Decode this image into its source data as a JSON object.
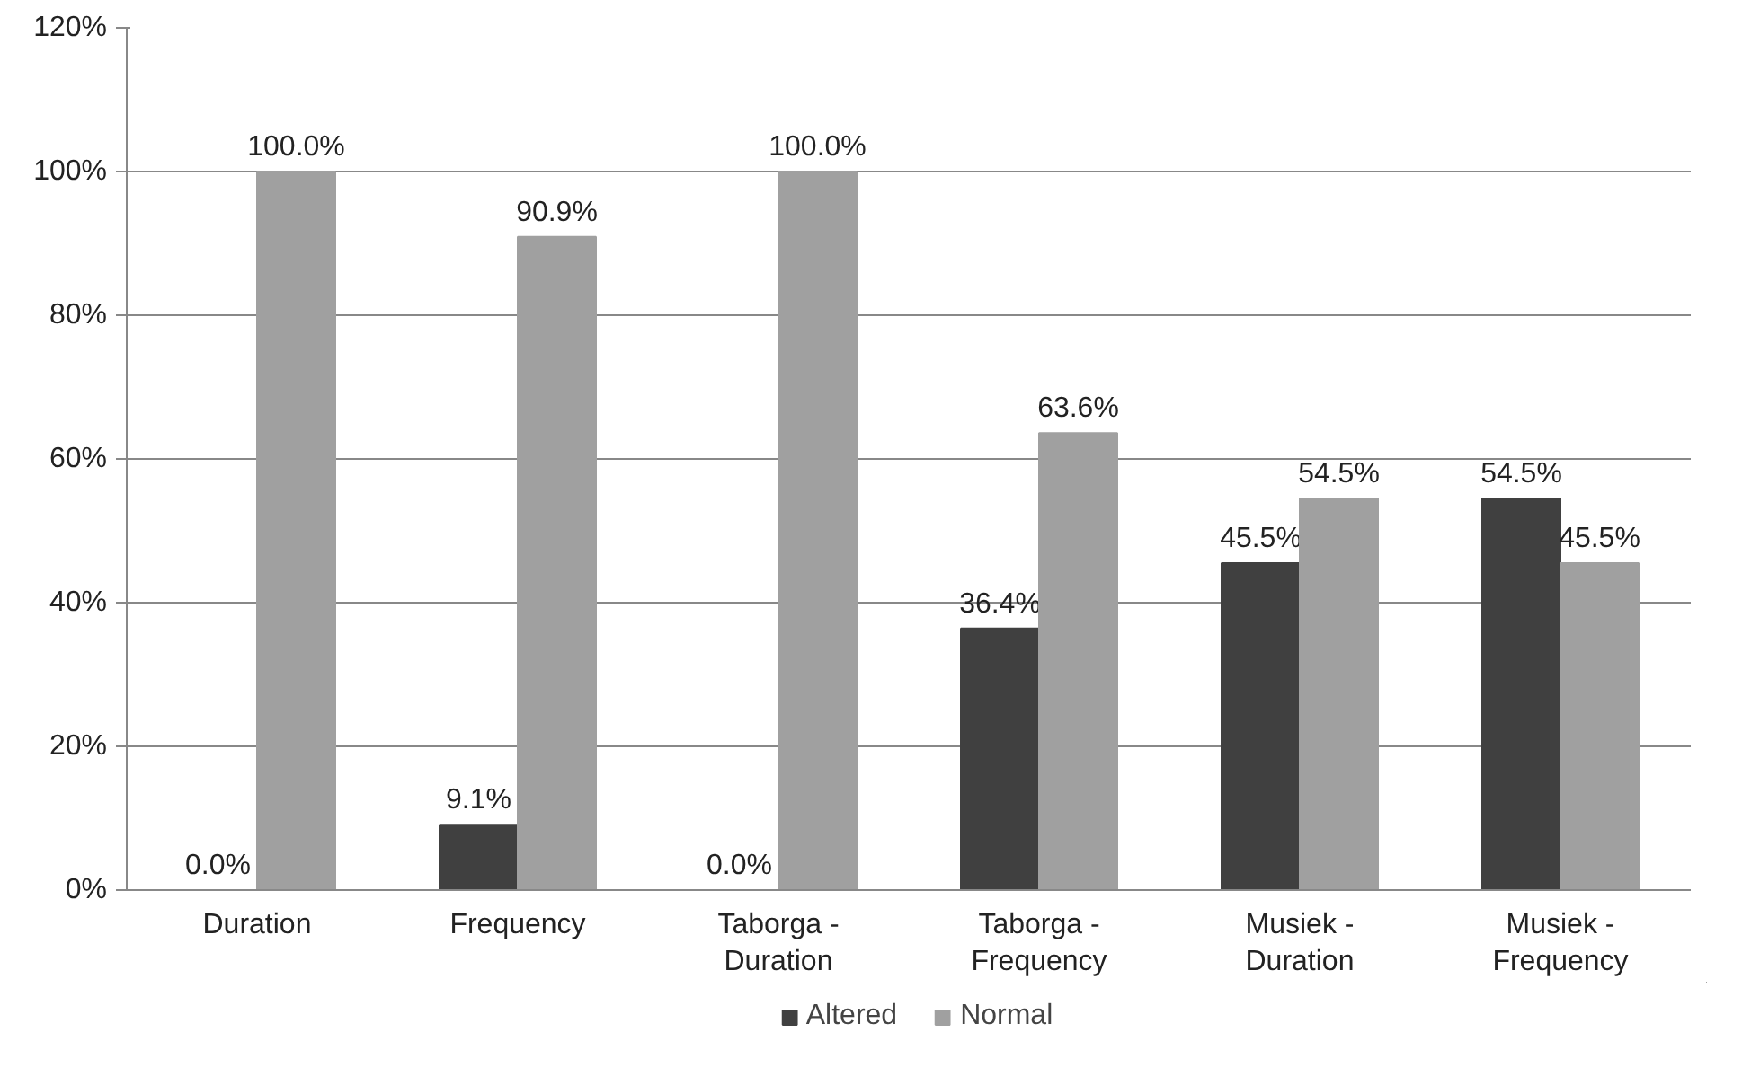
{
  "chart_data": {
    "type": "bar",
    "categories": [
      "Duration",
      "Frequency",
      "Taborga - Duration",
      "Taborga - Frequency",
      "Musiek - Duration",
      "Musiek - Frequency"
    ],
    "series": [
      {
        "name": "Altered",
        "color": "#404040",
        "values": [
          0.0,
          9.1,
          0.0,
          36.4,
          45.5,
          54.5
        ],
        "value_labels": [
          "0.0%",
          "9.1%",
          "0.0%",
          "36.4%",
          "45.5%",
          "54.5%"
        ]
      },
      {
        "name": "Normal",
        "color": "#a0a0a0",
        "values": [
          100.0,
          90.9,
          100.0,
          63.6,
          54.5,
          45.5
        ],
        "value_labels": [
          "100.0%",
          "90.9%",
          "100.0%",
          "63.6%",
          "54.5%",
          "45.5%"
        ]
      }
    ],
    "ylim": [
      0,
      120
    ],
    "yticks": [
      {
        "value": 0,
        "label": "0%"
      },
      {
        "value": 20,
        "label": "20%"
      },
      {
        "value": 40,
        "label": "40%"
      },
      {
        "value": 60,
        "label": "60%"
      },
      {
        "value": 80,
        "label": "80%"
      },
      {
        "value": 100,
        "label": "100%"
      },
      {
        "value": 120,
        "label": "120%"
      }
    ],
    "grid": "y",
    "legend": "bottom"
  }
}
